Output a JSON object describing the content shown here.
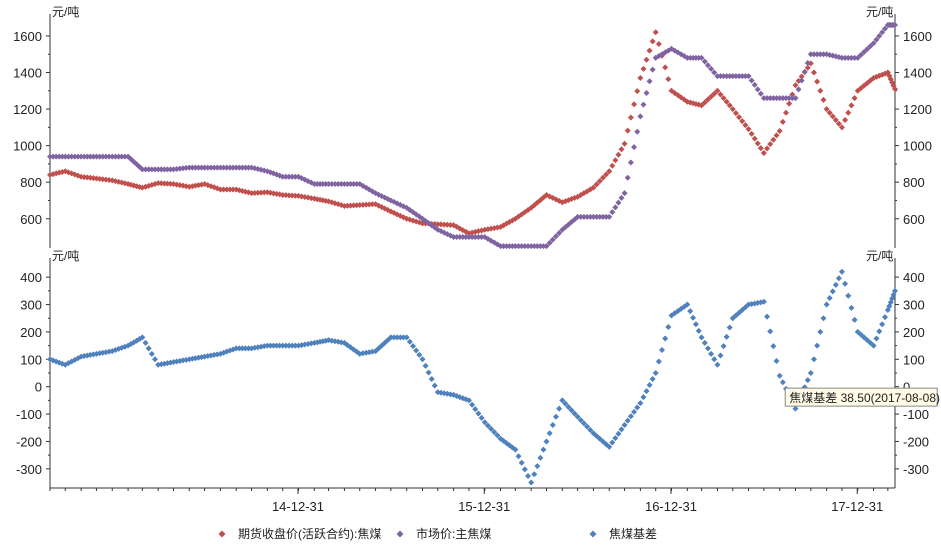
{
  "chart_data": {
    "type": "scatter",
    "x_tick_labels": [
      "14-12-31",
      "15-12-31",
      "16-12-31",
      "17-12-31"
    ],
    "x_range": [
      "2013-09-01",
      "2018-03-15"
    ],
    "legend": [
      {
        "name": "期货收盘价(活跃合约):焦煤",
        "color": "#c0504d",
        "symbol": "diamond"
      },
      {
        "name": "市场价:主焦煤",
        "color": "#8064a2",
        "symbol": "diamond"
      },
      {
        "name": "焦煤基差",
        "color": "#4f81bd",
        "symbol": "diamond"
      }
    ],
    "upper_panel": {
      "unit": "元/吨",
      "ylim": [
        440,
        1720
      ],
      "yticks": [
        600,
        800,
        1000,
        1200,
        1400,
        1600
      ],
      "series": [
        {
          "name": "期货收盘价(活跃合约):焦煤",
          "color": "#c0504d",
          "points": [
            [
              "2013-09-01",
              840
            ],
            [
              "2013-10-01",
              860
            ],
            [
              "2013-11-01",
              830
            ],
            [
              "2013-12-01",
              820
            ],
            [
              "2014-01-01",
              810
            ],
            [
              "2014-02-01",
              790
            ],
            [
              "2014-03-01",
              770
            ],
            [
              "2014-04-01",
              795
            ],
            [
              "2014-05-01",
              790
            ],
            [
              "2014-06-01",
              775
            ],
            [
              "2014-07-01",
              790
            ],
            [
              "2014-08-01",
              760
            ],
            [
              "2014-09-01",
              760
            ],
            [
              "2014-10-01",
              740
            ],
            [
              "2014-11-01",
              745
            ],
            [
              "2014-12-01",
              730
            ],
            [
              "2015-01-01",
              725
            ],
            [
              "2015-02-01",
              710
            ],
            [
              "2015-03-01",
              695
            ],
            [
              "2015-04-01",
              670
            ],
            [
              "2015-05-01",
              675
            ],
            [
              "2015-06-01",
              680
            ],
            [
              "2015-07-01",
              640
            ],
            [
              "2015-08-01",
              600
            ],
            [
              "2015-09-01",
              575
            ],
            [
              "2015-10-01",
              570
            ],
            [
              "2015-11-01",
              565
            ],
            [
              "2015-12-01",
              520
            ],
            [
              "2016-01-01",
              540
            ],
            [
              "2016-02-01",
              555
            ],
            [
              "2016-03-01",
              600
            ],
            [
              "2016-04-01",
              660
            ],
            [
              "2016-05-01",
              730
            ],
            [
              "2016-06-01",
              690
            ],
            [
              "2016-07-01",
              720
            ],
            [
              "2016-08-01",
              770
            ],
            [
              "2016-09-01",
              860
            ],
            [
              "2016-10-01",
              1010
            ],
            [
              "2016-11-01",
              1370
            ],
            [
              "2016-12-01",
              1620
            ],
            [
              "2017-01-01",
              1300
            ],
            [
              "2017-02-01",
              1240
            ],
            [
              "2017-03-01",
              1220
            ],
            [
              "2017-04-01",
              1300
            ],
            [
              "2017-05-01",
              1200
            ],
            [
              "2017-06-01",
              1090
            ],
            [
              "2017-07-01",
              960
            ],
            [
              "2017-08-01",
              1080
            ],
            [
              "2017-09-01",
              1330
            ],
            [
              "2017-10-01",
              1450
            ],
            [
              "2017-11-01",
              1200
            ],
            [
              "2017-12-01",
              1100
            ],
            [
              "2018-01-01",
              1300
            ],
            [
              "2018-02-01",
              1370
            ],
            [
              "2018-03-01",
              1400
            ],
            [
              "2018-03-15",
              1310
            ]
          ]
        },
        {
          "name": "市场价:主焦煤",
          "color": "#8064a2",
          "points": [
            [
              "2013-09-01",
              940
            ],
            [
              "2013-10-01",
              940
            ],
            [
              "2013-11-01",
              940
            ],
            [
              "2013-12-01",
              940
            ],
            [
              "2014-01-01",
              940
            ],
            [
              "2014-02-01",
              940
            ],
            [
              "2014-03-01",
              870
            ],
            [
              "2014-04-01",
              870
            ],
            [
              "2014-05-01",
              870
            ],
            [
              "2014-06-01",
              880
            ],
            [
              "2014-07-01",
              880
            ],
            [
              "2014-08-01",
              880
            ],
            [
              "2014-09-01",
              880
            ],
            [
              "2014-10-01",
              880
            ],
            [
              "2014-11-01",
              860
            ],
            [
              "2014-12-01",
              830
            ],
            [
              "2015-01-01",
              830
            ],
            [
              "2015-02-01",
              790
            ],
            [
              "2015-03-01",
              790
            ],
            [
              "2015-04-01",
              790
            ],
            [
              "2015-05-01",
              790
            ],
            [
              "2015-06-01",
              740
            ],
            [
              "2015-07-01",
              700
            ],
            [
              "2015-08-01",
              660
            ],
            [
              "2015-09-01",
              600
            ],
            [
              "2015-10-01",
              540
            ],
            [
              "2015-11-01",
              500
            ],
            [
              "2015-12-01",
              500
            ],
            [
              "2016-01-01",
              500
            ],
            [
              "2016-02-01",
              450
            ],
            [
              "2016-03-01",
              450
            ],
            [
              "2016-04-01",
              450
            ],
            [
              "2016-05-01",
              450
            ],
            [
              "2016-06-01",
              540
            ],
            [
              "2016-07-01",
              610
            ],
            [
              "2016-08-01",
              610
            ],
            [
              "2016-09-01",
              610
            ],
            [
              "2016-10-01",
              740
            ],
            [
              "2016-11-01",
              1160
            ],
            [
              "2016-12-01",
              1480
            ],
            [
              "2017-01-01",
              1530
            ],
            [
              "2017-02-01",
              1480
            ],
            [
              "2017-03-01",
              1480
            ],
            [
              "2017-04-01",
              1380
            ],
            [
              "2017-05-01",
              1380
            ],
            [
              "2017-06-01",
              1380
            ],
            [
              "2017-07-01",
              1260
            ],
            [
              "2017-08-01",
              1260
            ],
            [
              "2017-09-01",
              1260
            ],
            [
              "2017-10-01",
              1500
            ],
            [
              "2017-11-01",
              1500
            ],
            [
              "2017-12-01",
              1480
            ],
            [
              "2018-01-01",
              1480
            ],
            [
              "2018-02-01",
              1560
            ],
            [
              "2018-03-01",
              1660
            ],
            [
              "2018-03-15",
              1660
            ]
          ]
        }
      ]
    },
    "lower_panel": {
      "unit": "元/吨",
      "ylim": [
        -370,
        470
      ],
      "yticks": [
        -300,
        -200,
        -100,
        0,
        100,
        200,
        300,
        400
      ],
      "series": [
        {
          "name": "焦煤基差",
          "color": "#4f81bd",
          "points": [
            [
              "2013-09-01",
              100
            ],
            [
              "2013-10-01",
              80
            ],
            [
              "2013-11-01",
              110
            ],
            [
              "2013-12-01",
              120
            ],
            [
              "2014-01-01",
              130
            ],
            [
              "2014-02-01",
              150
            ],
            [
              "2014-03-01",
              180
            ],
            [
              "2014-04-01",
              80
            ],
            [
              "2014-05-01",
              90
            ],
            [
              "2014-06-01",
              100
            ],
            [
              "2014-07-01",
              110
            ],
            [
              "2014-08-01",
              120
            ],
            [
              "2014-09-01",
              140
            ],
            [
              "2014-10-01",
              140
            ],
            [
              "2014-11-01",
              150
            ],
            [
              "2014-12-01",
              150
            ],
            [
              "2015-01-01",
              150
            ],
            [
              "2015-02-01",
              160
            ],
            [
              "2015-03-01",
              170
            ],
            [
              "2015-04-01",
              160
            ],
            [
              "2015-05-01",
              120
            ],
            [
              "2015-06-01",
              130
            ],
            [
              "2015-07-01",
              180
            ],
            [
              "2015-08-01",
              180
            ],
            [
              "2015-09-01",
              100
            ],
            [
              "2015-10-01",
              -20
            ],
            [
              "2015-11-01",
              -30
            ],
            [
              "2015-12-01",
              -50
            ],
            [
              "2016-01-01",
              -130
            ],
            [
              "2016-02-01",
              -190
            ],
            [
              "2016-03-01",
              -230
            ],
            [
              "2016-04-01",
              -350
            ],
            [
              "2016-05-01",
              -200
            ],
            [
              "2016-06-01",
              -50
            ],
            [
              "2016-07-01",
              -110
            ],
            [
              "2016-08-01",
              -170
            ],
            [
              "2016-09-01",
              -220
            ],
            [
              "2016-10-01",
              -140
            ],
            [
              "2016-11-01",
              -60
            ],
            [
              "2016-12-01",
              50
            ],
            [
              "2017-01-01",
              260
            ],
            [
              "2017-02-01",
              300
            ],
            [
              "2017-03-01",
              180
            ],
            [
              "2017-04-01",
              80
            ],
            [
              "2017-05-01",
              250
            ],
            [
              "2017-06-01",
              300
            ],
            [
              "2017-07-01",
              310
            ],
            [
              "2017-08-01",
              40
            ],
            [
              "2017-09-01",
              -80
            ],
            [
              "2017-10-01",
              50
            ],
            [
              "2017-11-01",
              300
            ],
            [
              "2017-12-01",
              420
            ],
            [
              "2018-01-01",
              200
            ],
            [
              "2018-02-01",
              150
            ],
            [
              "2018-03-01",
              280
            ],
            [
              "2018-03-15",
              350
            ]
          ]
        }
      ]
    },
    "annotation": {
      "text": "焦煤基差  38.50(2017-08-08)",
      "x": "2017-08-08",
      "y": 38.5
    }
  }
}
